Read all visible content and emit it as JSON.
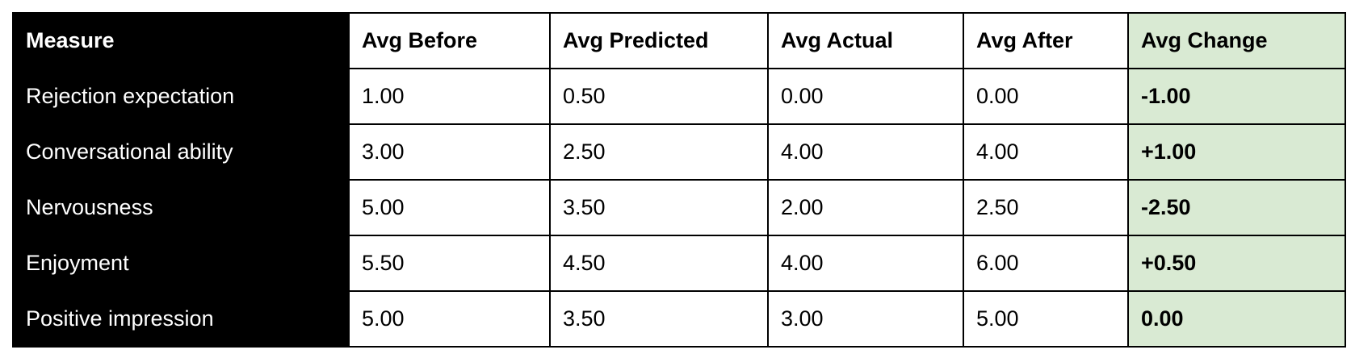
{
  "table": {
    "header": [
      "Measure",
      "Avg Before",
      "Avg Predicted",
      "Avg Actual",
      "Avg After",
      "Avg Change"
    ],
    "rows": [
      [
        "Rejection expectation",
        "1.00",
        "0.50",
        "0.00",
        "0.00",
        "-1.00"
      ],
      [
        "Conversational ability",
        "3.00",
        "2.50",
        "4.00",
        "4.00",
        "+1.00"
      ],
      [
        "Nervousness",
        "5.00",
        "3.50",
        "2.00",
        "2.50",
        "-2.50"
      ],
      [
        "Enjoyment",
        "5.50",
        "4.50",
        "4.00",
        "6.00",
        "+0.50"
      ],
      [
        "Positive impression",
        "5.00",
        "3.50",
        "3.00",
        "5.00",
        "0.00"
      ]
    ]
  }
}
